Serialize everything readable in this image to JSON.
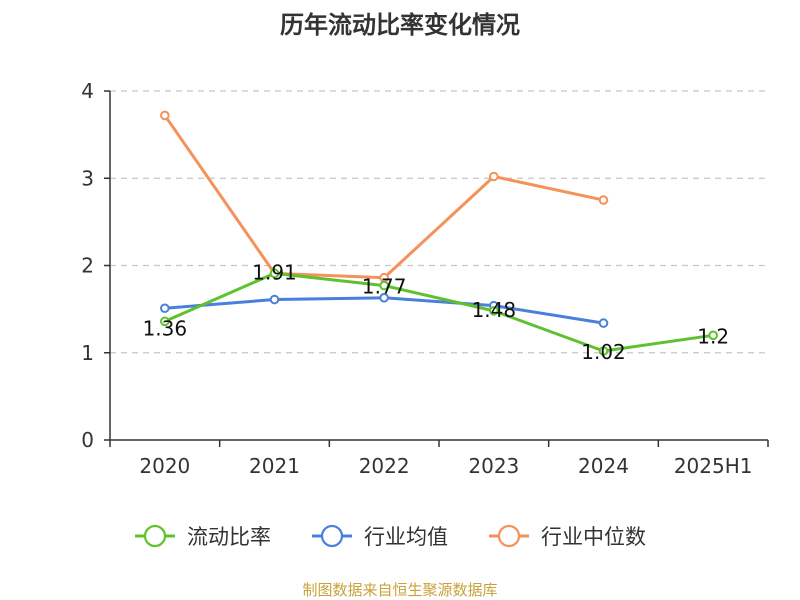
{
  "chart_data": {
    "type": "line",
    "title": "历年流动比率变化情况",
    "categories": [
      "2020",
      "2021",
      "2022",
      "2023",
      "2024",
      "2025H1"
    ],
    "ylim": [
      0,
      4
    ],
    "yticks": [
      0,
      1,
      2,
      3,
      4
    ],
    "grid": true,
    "legend_position": "bottom",
    "series": [
      {
        "name": "流动比率",
        "color": "#5ec12e",
        "values": [
          1.36,
          1.91,
          1.77,
          1.48,
          1.02,
          1.2
        ],
        "labels": [
          "1.36",
          "1.91",
          "1.77",
          "1.48",
          "1.02",
          "1.2"
        ]
      },
      {
        "name": "行业均值",
        "color": "#4a7fdb",
        "values": [
          1.51,
          1.61,
          1.63,
          1.54,
          1.34,
          null
        ]
      },
      {
        "name": "行业中位数",
        "color": "#f5915b",
        "values": [
          3.72,
          1.91,
          1.86,
          3.02,
          2.75,
          null
        ]
      }
    ]
  },
  "source": {
    "text": "制图数据来自恒生聚源数据库",
    "color": "#c8a23a"
  }
}
